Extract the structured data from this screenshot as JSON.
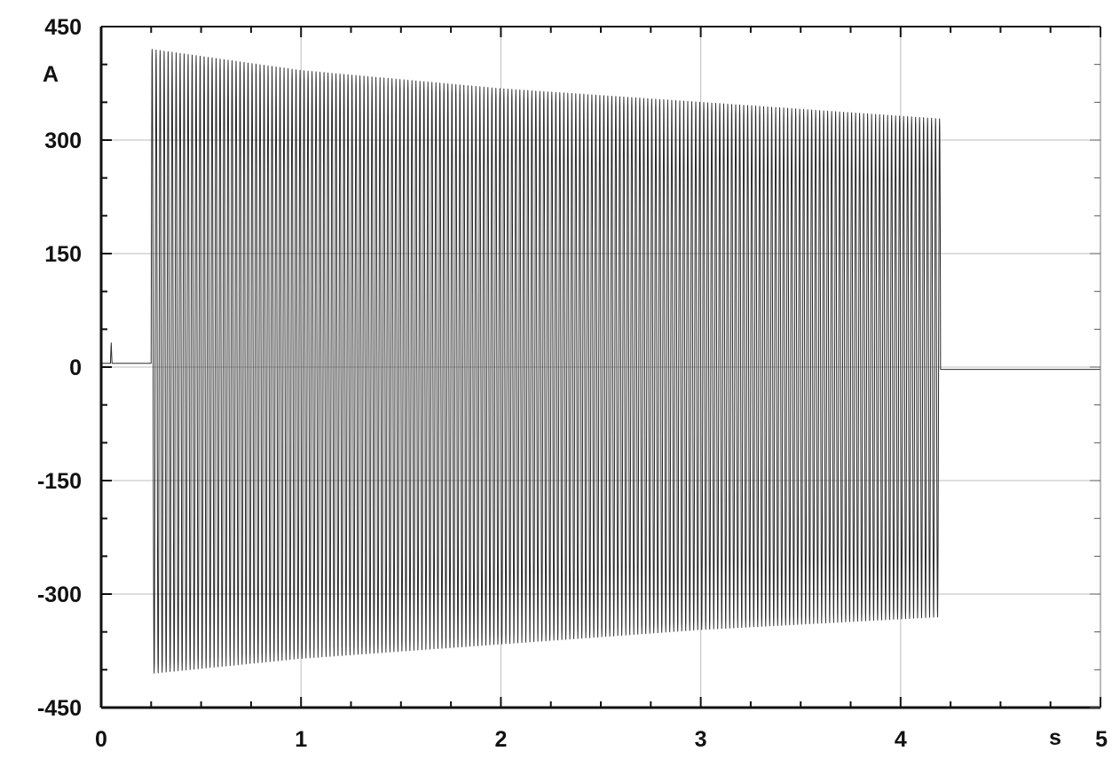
{
  "chart_data": {
    "type": "line",
    "title": "",
    "xlabel": "s",
    "ylabel": "A",
    "xlim": [
      0,
      5
    ],
    "ylim": [
      -450,
      450
    ],
    "x_ticks": [
      0,
      1,
      2,
      3,
      4,
      5
    ],
    "y_ticks": [
      450,
      300,
      150,
      0,
      -150,
      -300,
      -450
    ],
    "x_tick_labels": [
      "0",
      "1",
      "2",
      "3",
      "4",
      "5"
    ],
    "y_tick_labels": [
      "450",
      "300",
      "150",
      "0",
      "-150",
      "-300",
      "-450"
    ],
    "grid": true,
    "legend": "none",
    "series": [
      {
        "signal": "oscillating current",
        "color": "#2a2a2a",
        "pre_start_level": 5,
        "pre_start_spike": {
          "x": 0.05,
          "y": 32
        },
        "start_time": 0.25,
        "stop_time": 4.2,
        "post_stop_level": -3,
        "cycles_per_second": 50,
        "envelope": [
          {
            "x": 0.25,
            "upper": 420,
            "lower": -405
          },
          {
            "x": 1.0,
            "upper": 392,
            "lower": -385
          },
          {
            "x": 2.0,
            "upper": 368,
            "lower": -366
          },
          {
            "x": 3.0,
            "upper": 350,
            "lower": -347
          },
          {
            "x": 4.2,
            "upper": 328,
            "lower": -330
          }
        ]
      }
    ]
  }
}
